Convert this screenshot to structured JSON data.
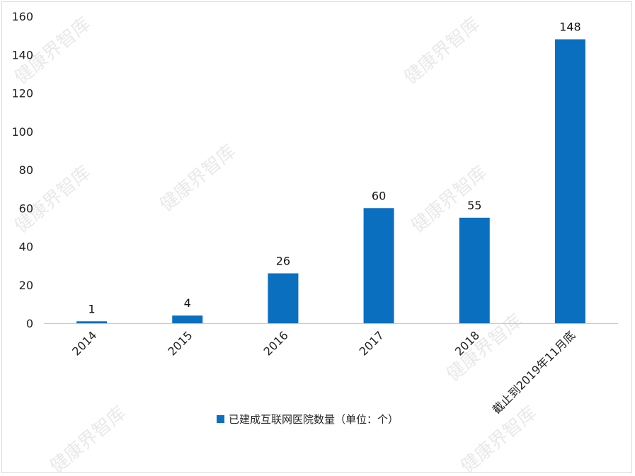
{
  "chart_data": {
    "type": "bar",
    "categories": [
      "2014",
      "2015",
      "2016",
      "2017",
      "2018",
      "截止到2019年11月底"
    ],
    "series": [
      {
        "name": "已建成互联网医院数量（单位：个）",
        "values": [
          1,
          4,
          26,
          60,
          55,
          148
        ],
        "color": "#0B6FC0"
      }
    ],
    "ylim": [
      0,
      160
    ],
    "yticks": [
      0,
      20,
      40,
      60,
      80,
      100,
      120,
      140,
      160
    ],
    "data_labels": true,
    "legend_position": "bottom",
    "grid": false
  },
  "watermarks": [
    "健康界智库",
    "健康界智库",
    "健康界智库",
    "健康界智库",
    "健康界智库",
    "健康界智库",
    "健康界智库",
    "健康界智库"
  ]
}
